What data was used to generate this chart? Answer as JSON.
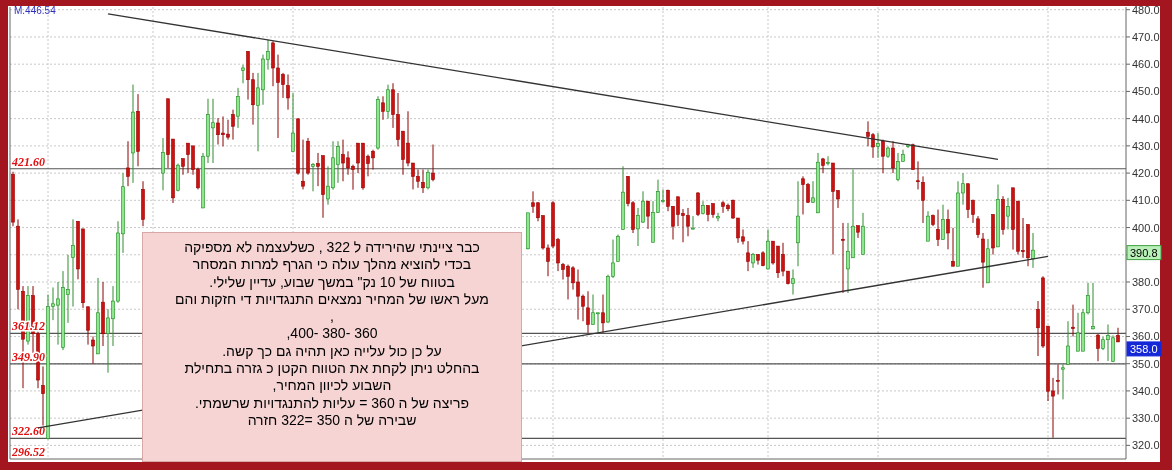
{
  "chart_data": {
    "type": "candlestick",
    "categories": [
      null,
      null,
      null,
      null,
      null,
      null,
      null,
      null,
      null,
      null,
      null,
      null,
      null,
      null,
      null,
      null,
      null,
      null,
      null,
      null,
      null,
      null,
      null,
      null,
      null,
      null,
      null,
      null,
      null,
      null,
      null,
      null,
      null,
      null,
      null,
      null,
      null,
      null,
      null,
      null,
      null,
      null,
      null,
      null,
      null,
      null,
      null,
      null,
      null,
      null,
      null,
      null,
      null,
      null,
      null,
      null,
      null,
      null,
      null,
      null,
      null,
      null,
      null,
      null,
      null,
      null,
      null,
      null,
      null,
      null,
      null,
      null,
      null,
      null,
      null,
      null,
      null,
      null,
      null,
      null,
      null,
      null,
      null,
      null,
      null,
      null,
      null,
      null,
      null,
      null,
      null,
      null,
      null,
      null,
      null,
      null,
      null,
      null,
      null,
      null,
      null,
      null,
      null,
      null,
      null,
      null,
      null,
      null,
      null,
      null,
      null,
      null,
      null,
      null,
      null,
      null,
      null,
      null,
      null,
      null,
      null,
      null,
      null,
      null,
      null,
      null,
      null,
      null,
      null,
      null,
      null,
      null,
      null,
      null,
      null,
      null,
      null,
      null,
      null,
      null,
      null,
      null,
      null,
      null,
      null,
      null,
      null,
      null,
      null,
      null,
      null,
      null,
      null,
      null,
      null,
      null,
      null,
      null,
      null,
      null,
      null,
      null,
      null,
      null,
      null,
      null,
      null,
      null,
      null,
      null,
      null,
      null,
      null,
      null,
      null,
      null,
      null,
      null,
      null,
      null,
      null,
      null,
      null,
      null,
      null,
      null,
      null,
      null,
      null,
      null,
      null,
      null,
      null,
      null,
      null,
      null,
      null,
      null,
      null,
      null,
      null,
      null,
      null,
      null,
      null,
      null,
      null,
      null,
      null,
      null,
      null,
      null,
      null,
      null,
      null,
      null,
      null,
      null,
      null,
      null,
      null,
      null
    ],
    "ohlc": [
      [
        419.5,
        420.5,
        400.5,
        402
      ],
      [
        400.5,
        403,
        370,
        377.3
      ],
      [
        376.6,
        378.5,
        341,
        359
      ],
      [
        358.3,
        378.5,
        357,
        375
      ],
      [
        375,
        378.5,
        354,
        361
      ],
      [
        361,
        362,
        341,
        344
      ],
      [
        342,
        349,
        327,
        339
      ],
      [
        322.5,
        375.4,
        322.2,
        371
      ],
      [
        371,
        378,
        366,
        372
      ],
      [
        371.5,
        380,
        357,
        373.8
      ],
      [
        356,
        384,
        355,
        378
      ],
      [
        375.4,
        390,
        365,
        377.3
      ],
      [
        389,
        403,
        371,
        393.4
      ],
      [
        402.3,
        402.3,
        381,
        384.8
      ],
      [
        399.5,
        399.5,
        370.5,
        372.4
      ],
      [
        370.9,
        371,
        357,
        362.3
      ],
      [
        358.7,
        360,
        350,
        356.5
      ],
      [
        353.6,
        381.5,
        353.6,
        368.7
      ],
      [
        372.6,
        380,
        356.5,
        361
      ],
      [
        361,
        370,
        346.7,
        366.8
      ],
      [
        366.5,
        378.5,
        356.5,
        373
      ],
      [
        373,
        402.3,
        372.4,
        398
      ],
      [
        397.7,
        420,
        390.7,
        415
      ],
      [
        421.9,
        431.7,
        415.2,
        418.8
      ],
      [
        427.4,
        452.5,
        416.4,
        442.4
      ],
      [
        442.7,
        449,
        422.5,
        428
      ],
      [
        414,
        417,
        400.5,
        403
      ],
      null,
      null,
      null,
      [
        420,
        432.9,
        413.7,
        427.6
      ],
      [
        447.3,
        447.3,
        421.9,
        426.8
      ],
      [
        432.5,
        432.5,
        409,
        410.9
      ],
      [
        413.7,
        423.5,
        413.3,
        422.9
      ],
      [
        425.3,
        425.3,
        419.4,
        422.5
      ],
      [
        431,
        431,
        420,
        426.8
      ],
      [
        430,
        430,
        419.4,
        421.3
      ],
      [
        421.3,
        422,
        414,
        414.6
      ],
      [
        407.2,
        427.4,
        407.2,
        426.2
      ],
      [
        426.2,
        447.3,
        423.7,
        441.5
      ],
      [
        436.6,
        447.3,
        423.7,
        438.5
      ],
      [
        438.4,
        440.2,
        430.5,
        434.1
      ],
      [
        434.7,
        440.8,
        429.8,
        434.1
      ],
      [
        434.3,
        439.6,
        432.3,
        433.2
      ],
      [
        441.5,
        443.3,
        432.3,
        437.2
      ],
      [
        440.9,
        451.3,
        436.6,
        448.2
      ],
      [
        457.7,
        459.8,
        453,
        458.6
      ],
      [
        464.7,
        464.7,
        447,
        454.3
      ],
      [
        454.3,
        456.8,
        437.8,
        445.1
      ],
      [
        444.8,
        456.8,
        428,
        451.3
      ],
      [
        450.6,
        463.5,
        445.1,
        461.9
      ],
      [
        461.7,
        469,
        458,
        464.7
      ],
      [
        467.8,
        468.4,
        451.9,
        458.6
      ],
      [
        458.6,
        463.5,
        432.9,
        453.3
      ],
      [
        456.2,
        456.8,
        447.6,
        452.5
      ],
      [
        452.1,
        456.2,
        443.3,
        447.6
      ],
      [
        428,
        449.4,
        428,
        434.7
      ],
      [
        439.9,
        440.2,
        419.4,
        420
      ],
      [
        417,
        432.3,
        414,
        415.2
      ],
      [
        431.7,
        432.9,
        419.4,
        420
      ],
      [
        422.5,
        423.7,
        413.3,
        423.1
      ],
      [
        423.5,
        427.4,
        415.2,
        422.5
      ],
      [
        426.4,
        426.4,
        403.6,
        412.1
      ],
      [
        410.5,
        422.5,
        408.4,
        415.2
      ],
      [
        414.6,
        431.7,
        413.9,
        425.6
      ],
      [
        423.1,
        431.7,
        416.4,
        429.8
      ],
      [
        426.8,
        432.3,
        417,
        423.7
      ],
      [
        425.6,
        428,
        419.4,
        421.9
      ],
      [
        422.5,
        423.1,
        413.9,
        421.3
      ],
      [
        431,
        431,
        420,
        423.7
      ],
      [
        431,
        431,
        413.9,
        414.6
      ],
      [
        426.2,
        426.8,
        418.8,
        423.5
      ],
      [
        428,
        428.6,
        421.3,
        425.6
      ],
      [
        429.2,
        448.2,
        428.6,
        447
      ],
      [
        445.8,
        448.2,
        439.6,
        442.7
      ],
      [
        442.7,
        452.5,
        440,
        450.6
      ],
      [
        450.6,
        453,
        436.6,
        441.5
      ],
      [
        441.5,
        449.4,
        429.8,
        432.3
      ],
      [
        435.4,
        435.4,
        419.4,
        425
      ],
      [
        431,
        442.7,
        422.5,
        423.7
      ],
      [
        423.7,
        423.7,
        414,
        418.8
      ],
      [
        418.8,
        421.3,
        414.6,
        417
      ],
      [
        416.6,
        421.3,
        412.7,
        414.6
      ],
      [
        414.6,
        421.3,
        414,
        420.3
      ],
      [
        420,
        430.5,
        417,
        417.6
      ],
      null,
      null,
      null,
      null,
      null,
      null,
      null,
      null,
      null,
      null,
      null,
      null,
      null,
      null,
      null,
      null,
      null,
      null,
      [
        392.2,
        405.4,
        392,
        405.4
      ],
      [
        409.1,
        413.3,
        405.4,
        407.8
      ],
      [
        409.1,
        409.3,
        402.3,
        403.6
      ],
      [
        404.4,
        404.4,
        391.9,
        392.5
      ],
      [
        392.5,
        393.8,
        382.1,
        387.6
      ],
      [
        409.1,
        409.7,
        392.5,
        393.2
      ],
      [
        395.6,
        396.2,
        384,
        387
      ],
      [
        386.4,
        387,
        380.9,
        384.6
      ],
      [
        385.8,
        386.4,
        373.6,
        382.1
      ],
      [
        385.2,
        385.8,
        377.2,
        379.7
      ],
      [
        380,
        384.6,
        366.2,
        374.8
      ],
      [
        374.8,
        375.4,
        365.6,
        371.1
      ],
      [
        370.5,
        376.6,
        361.3,
        364.4
      ],
      [
        364.4,
        375.4,
        364.4,
        368.7
      ],
      [
        368.6,
        368.7,
        361.3,
        368.7
      ],
      [
        368.7,
        375.4,
        361.3,
        365
      ],
      [
        365.3,
        382.7,
        365,
        382.1
      ],
      [
        382.1,
        395.6,
        381.5,
        387
      ],
      [
        387.6,
        397.4,
        387.6,
        396.8
      ],
      [
        399.3,
        422.5,
        399.3,
        413
      ],
      [
        418.8,
        418.8,
        407.8,
        408.8
      ],
      [
        409.1,
        409.7,
        398,
        399.3
      ],
      [
        399.5,
        407.2,
        393.2,
        404.4
      ],
      [
        402,
        413.3,
        401.7,
        409.7
      ],
      [
        409.7,
        409.7,
        399.5,
        404.2
      ],
      [
        394.6,
        409.7,
        394.6,
        405.6
      ],
      [
        405.6,
        417.6,
        405.4,
        413.3
      ],
      [
        409.5,
        414,
        409.1,
        410
      ],
      [
        413.7,
        413.9,
        406,
        407.8
      ],
      [
        407.8,
        407.8,
        395.6,
        400.5
      ],
      [
        411.3,
        411.3,
        400.5,
        404.8
      ],
      [
        405.1,
        406.8,
        394.6,
        404.4
      ],
      [
        404.4,
        407.2,
        396.8,
        400.5
      ],
      [
        399.5,
        404.2,
        399.3,
        399.8
      ],
      [
        412.7,
        413,
        404.2,
        404.8
      ],
      [
        405.1,
        409.7,
        404.8,
        408.1
      ],
      [
        408.1,
        408.1,
        402.3,
        404.8
      ],
      [
        408.8,
        408.8,
        403.6,
        404.8
      ],
      [
        403.5,
        405.4,
        402.3,
        404
      ],
      [
        409.1,
        409.7,
        405.4,
        407.8
      ],
      [
        408.1,
        408.8,
        406,
        406.9
      ],
      [
        410,
        410.3,
        403.2,
        403.5
      ],
      [
        403.5,
        403.5,
        394.4,
        396.2
      ],
      [
        396.6,
        399.3,
        393.8,
        395
      ],
      [
        390.7,
        395,
        384,
        387.6
      ],
      [
        387,
        390.7,
        385.2,
        390.1
      ],
      [
        390.1,
        390.1,
        386.4,
        388
      ],
      [
        390.7,
        391.3,
        385.8,
        386
      ],
      [
        384.8,
        399.3,
        384.6,
        395
      ],
      [
        395,
        395,
        386.4,
        387
      ],
      [
        393.2,
        393.2,
        381.5,
        383.4
      ],
      [
        390.1,
        394.4,
        382.1,
        384
      ],
      [
        384,
        384,
        379.1,
        379.4
      ],
      [
        379.4,
        384.6,
        375.4,
        381.2
      ],
      [
        394.4,
        417,
        385.8,
        404.2
      ],
      [
        417.9,
        418.8,
        404.8,
        415.8
      ],
      [
        415.8,
        416.4,
        409,
        409.3
      ],
      [
        409.3,
        417,
        409,
        410.9
      ],
      [
        405.4,
        427.4,
        405.4,
        424
      ],
      [
        425.2,
        425.6,
        420,
        422.8
      ],
      [
        423.7,
        426.2,
        422.8,
        423.9
      ],
      [
        423.7,
        423.7,
        390.1,
        413.3
      ],
      [
        413.6,
        413.6,
        407.2,
        410.5
      ],
      [
        395.7,
        401.7,
        376,
        395.3
      ],
      [
        384.8,
        401.7,
        376,
        391.3
      ],
      [
        388.9,
        421.3,
        388.9,
        400.5
      ],
      [
        400.7,
        400.7,
        396.2,
        398.3
      ],
      [
        390.1,
        405.4,
        390.1,
        400.5
      ],
      [
        435,
        439,
        429.8,
        433.5
      ],
      [
        434.1,
        434.7,
        425.6,
        429.6
      ],
      [
        429.8,
        434.7,
        425.6,
        430.8
      ],
      [
        431.7,
        432.3,
        420,
        426.2
      ],
      [
        426.2,
        429.8,
        425.6,
        429.2
      ],
      [
        429.2,
        431.7,
        420,
        421.9
      ],
      [
        417.6,
        427.4,
        417,
        424.3
      ],
      [
        424.3,
        428.6,
        424.3,
        426.8
      ],
      [
        429.8,
        430.8,
        429.2,
        430.4
      ],
      [
        430.4,
        430.8,
        421.3,
        421.3
      ],
      [
        417.2,
        424.3,
        414,
        417
      ],
      [
        416.6,
        418.8,
        401.7,
        410
      ],
      [
        395,
        406,
        395,
        404.2
      ],
      [
        404.4,
        404.8,
        400.5,
        401.1
      ],
      [
        399.3,
        406.6,
        393.2,
        395.6
      ],
      [
        395.6,
        408.4,
        395.6,
        402.9
      ],
      [
        402.9,
        406.6,
        392,
        398
      ],
      [
        387.6,
        399.9,
        385.8,
        385.8
      ],
      [
        385.8,
        417,
        385.8,
        412.7
      ],
      [
        412.7,
        420,
        408.4,
        416.1
      ],
      [
        416.1,
        416.1,
        403.5,
        406.6
      ],
      [
        409.9,
        410.3,
        401.7,
        404.8
      ],
      [
        403.2,
        404.2,
        396.2,
        397.4
      ],
      [
        395.8,
        398,
        377.9,
        387.3
      ],
      [
        379.7,
        395.8,
        379.7,
        392.2
      ],
      [
        404.8,
        404.8,
        390.1,
        392.5
      ],
      [
        392.9,
        415.8,
        392.9,
        410.3
      ],
      [
        410.3,
        411.5,
        397.4,
        399.3
      ],
      [
        404.2,
        410.9,
        399.3,
        407.8
      ],
      [
        414.6,
        414.6,
        391.9,
        399.3
      ],
      [
        409.7,
        409.7,
        390.1,
        391.3
      ],
      [
        391.5,
        403.5,
        388.9,
        391.2
      ],
      [
        401.1,
        401.1,
        385.8,
        388.9
      ],
      [
        388.5,
        398,
        385.2,
        391.7
      ],
      [
        369.9,
        373,
        352.8,
        363.2
      ],
      [
        381.5,
        382.1,
        355.8,
        356.5
      ],
      [
        363.8,
        363.8,
        336.3,
        339.9
      ],
      [
        340,
        344.8,
        322.8,
        338.1
      ],
      [
        343.9,
        349.7,
        338.7,
        343.7
      ],
      [
        348,
        349.7,
        336.9,
        348.5
      ],
      [
        349.7,
        365.6,
        349.7,
        356.5
      ],
      [
        363.4,
        371.7,
        360,
        362.9
      ],
      [
        354.6,
        368.7,
        354.6,
        361.3
      ],
      [
        354.6,
        370,
        354.6,
        368.7
      ],
      [
        368.7,
        379.7,
        368.1,
        375
      ],
      [
        362.8,
        379.7,
        362.6,
        363.7
      ],
      [
        360.5,
        360.9,
        350.9,
        355.6
      ],
      [
        355.6,
        359.8,
        355,
        358.8
      ],
      [
        358.8,
        364.4,
        351,
        360.4
      ],
      [
        350.9,
        360.4,
        350.6,
        359.5
      ],
      [
        360.4,
        363.2,
        358,
        358
      ]
    ],
    "series": [
      {
        "type": "line",
        "values": [
          null,
          null,
          null,
          null,
          null,
          null,
          null,
          null,
          null,
          null,
          null,
          null,
          null,
          null,
          null,
          null,
          null,
          null,
          null,
          478.5,
          null,
          null,
          null,
          null,
          null,
          null,
          null,
          null,
          null,
          null,
          null,
          null,
          null,
          null,
          null,
          null,
          null,
          null,
          null,
          null,
          null,
          null,
          null,
          null,
          null,
          null,
          null,
          null,
          null,
          null,
          null,
          null,
          null,
          null,
          null,
          null,
          null,
          null,
          null,
          null,
          null,
          null,
          null,
          null,
          null,
          null,
          null,
          null,
          null,
          null,
          null,
          null,
          null,
          null,
          null,
          null,
          null,
          null,
          null,
          null,
          null,
          null,
          null,
          null,
          null,
          null,
          null,
          null,
          null,
          null,
          null,
          null,
          null,
          null,
          null,
          null,
          null,
          null,
          null,
          null,
          null,
          null,
          null,
          null,
          null,
          null,
          null,
          null,
          null,
          null,
          null,
          null,
          null,
          null,
          null,
          null,
          null,
          null,
          null,
          null,
          null,
          null,
          null,
          null,
          null,
          null,
          null,
          null,
          null,
          null,
          null,
          null,
          null,
          null,
          null,
          null,
          null,
          null,
          null,
          null,
          null,
          null,
          null,
          null,
          null,
          null,
          null,
          null,
          null,
          null,
          null,
          null,
          null,
          null,
          null,
          null,
          null,
          null,
          null,
          null,
          null,
          null,
          null,
          null,
          null,
          null,
          null,
          null,
          null,
          null,
          null,
          null,
          null,
          null,
          null,
          null,
          null,
          null,
          null,
          null,
          null,
          null,
          null,
          null,
          null,
          null,
          null,
          null,
          null,
          null,
          null,
          null,
          null,
          null,
          null,
          null,
          null,
          425,
          null,
          null,
          null,
          null,
          null,
          null,
          null,
          null,
          null,
          null,
          null,
          null,
          null,
          null,
          null,
          null,
          null,
          null,
          null,
          null,
          null,
          null,
          null,
          null
        ],
        "color": "#333333"
      },
      {
        "type": "line",
        "values": [
          null,
          null,
          null,
          null,
          null,
          326.4,
          null,
          null,
          null,
          null,
          null,
          null,
          null,
          null,
          null,
          null,
          null,
          null,
          null,
          null,
          null,
          null,
          null,
          null,
          null,
          null,
          null,
          null,
          null,
          null,
          null,
          null,
          null,
          null,
          null,
          null,
          null,
          null,
          null,
          null,
          null,
          null,
          null,
          null,
          null,
          null,
          null,
          null,
          null,
          null,
          null,
          null,
          null,
          null,
          null,
          null,
          null,
          null,
          null,
          null,
          null,
          null,
          null,
          null,
          null,
          null,
          null,
          null,
          null,
          null,
          null,
          null,
          null,
          null,
          null,
          null,
          null,
          null,
          null,
          null,
          null,
          null,
          null,
          null,
          null,
          null,
          null,
          null,
          null,
          null,
          null,
          null,
          null,
          null,
          null,
          null,
          null,
          null,
          null,
          null,
          null,
          null,
          null,
          null,
          null,
          null,
          null,
          null,
          null,
          null,
          null,
          null,
          null,
          null,
          null,
          null,
          null,
          null,
          null,
          null,
          null,
          null,
          null,
          null,
          null,
          null,
          null,
          null,
          null,
          null,
          null,
          null,
          null,
          null,
          null,
          null,
          null,
          null,
          null,
          null,
          null,
          null,
          null,
          null,
          null,
          null,
          null,
          null,
          null,
          null,
          null,
          null,
          null,
          null,
          null,
          null,
          null,
          null,
          null,
          null,
          null,
          null,
          null,
          null,
          null,
          null,
          null,
          null,
          null,
          null,
          null,
          null,
          null,
          null,
          null,
          null,
          null,
          null,
          null,
          null,
          null,
          null,
          null,
          null,
          null,
          null,
          null,
          null,
          null,
          null,
          null,
          null,
          null,
          null,
          null,
          null,
          null,
          null,
          null,
          null,
          null,
          null,
          null,
          null,
          null,
          null,
          null,
          389.4,
          null,
          null,
          null,
          null,
          null,
          null,
          null,
          null,
          null,
          null,
          null,
          null,
          null,
          null
        ],
        "color": "#333333"
      }
    ],
    "ylim": [
      315,
      481
    ],
    "yticks": [
      {
        "value": 320,
        "label": "320.0"
      },
      {
        "value": 330,
        "label": "330.0"
      },
      {
        "value": 340,
        "label": "340.0"
      },
      {
        "value": 350,
        "label": "350.0"
      },
      {
        "value": 360,
        "label": "360.0"
      },
      {
        "value": 370,
        "label": "370.0"
      },
      {
        "value": 380,
        "label": "380.0"
      },
      {
        "value": 390,
        "label": null
      },
      {
        "value": 400,
        "label": "400.0"
      },
      {
        "value": 410,
        "label": "410.0"
      },
      {
        "value": 420,
        "label": "420.0"
      },
      {
        "value": 430,
        "label": "430.0"
      },
      {
        "value": 440,
        "label": "440.0"
      },
      {
        "value": 450,
        "label": "450.0"
      },
      {
        "value": 460,
        "label": "460.0"
      },
      {
        "value": 470,
        "label": "470.0"
      },
      {
        "value": 480,
        "label": "480.0"
      }
    ],
    "grid": "y",
    "ref_lines": [
      {
        "axis": "y",
        "value": 421.6,
        "label": "421.60"
      },
      {
        "axis": "y",
        "value": 361.12,
        "label": "361.12"
      },
      {
        "axis": "y",
        "value": 349.9,
        "label": "349.90"
      },
      {
        "axis": "y",
        "value": 322.6,
        "label": "322.60"
      }
    ],
    "annotations": [
      "M.446.54",
      "296.52",
      "כבר ציינתי שהירידה ל 322 , כשלעצמה לא מספיקה\nבכדי להוציא מהלך עולה כי הגרף למרות המסחר\nבטווח של 10 נק\" במשך שבוע, עדיין שלילי.\nמעל ראשו של המחיר נמצאים התנגדויות די חזקות והם\n,\n360 -380 -400,\nעל כן כול עלייה כאן תהיה גם כך קשה.\nבהחלט ניתן לקחת את הטווח הקטן כ גזרה בתחילת\nהשבוע לכיוון המחיר,\nפריצה של ה 360 = עליות להתנגדויות שרשמתי.\nשבירה של ה 350 =322 חזרה",
      {
        "text": "390.8",
        "y": 390.8
      },
      "358.0"
    ]
  }
}
